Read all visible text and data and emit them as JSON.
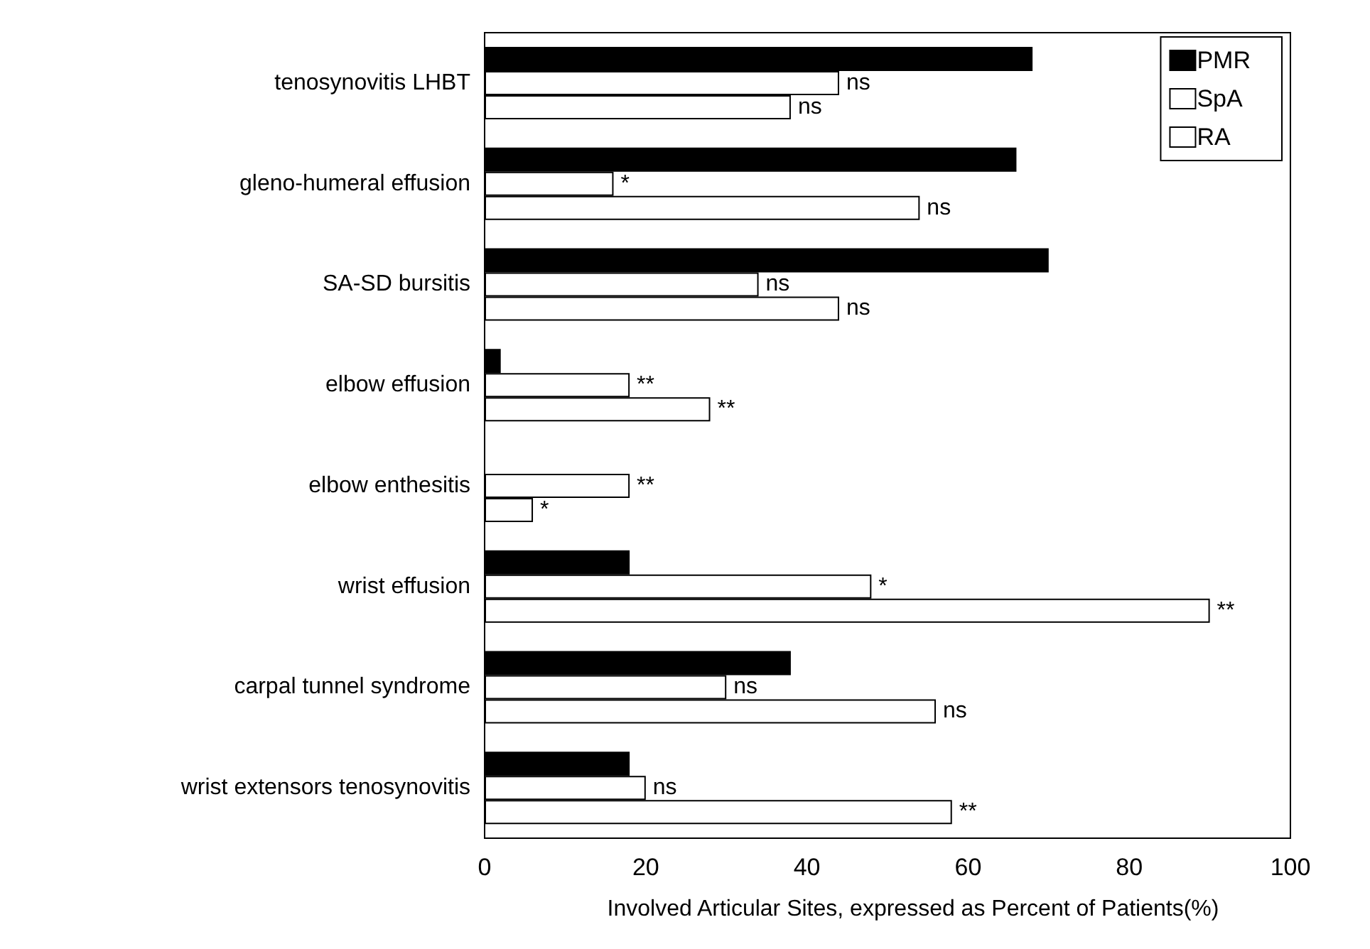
{
  "chart_data": {
    "type": "bar",
    "orientation": "horizontal",
    "xlabel": "Involved Articular Sites, expressed as Percent of Patients(%)",
    "categories": [
      "tenosynovitis LHBT",
      "gleno-humeral effusion",
      "SA-SD bursitis",
      "elbow effusion",
      "elbow enthesitis",
      "wrist effusion",
      "carpal tunnel syndrome",
      "wrist extensors tenosynovitis"
    ],
    "series": [
      {
        "name": "PMR",
        "color": "#000000",
        "values": [
          68,
          66,
          70,
          2,
          0,
          18,
          38,
          18
        ]
      },
      {
        "name": "SpA",
        "color": "#ffffff",
        "values": [
          44,
          16,
          34,
          18,
          18,
          48,
          30,
          20
        ],
        "value_labels": [
          "ns",
          "*",
          "ns",
          "**",
          "**",
          "*",
          "ns",
          "ns"
        ]
      },
      {
        "name": "RA",
        "color": "#ffffff",
        "values": [
          38,
          54,
          44,
          28,
          6,
          90,
          56,
          58
        ],
        "value_labels": [
          "ns",
          "ns",
          "ns",
          "**",
          "*",
          "**",
          "ns",
          "**"
        ]
      }
    ],
    "xlim": [
      0,
      100
    ],
    "xticks": [
      0,
      20,
      40,
      60,
      80,
      100
    ],
    "grid": false,
    "legend": "top right"
  }
}
